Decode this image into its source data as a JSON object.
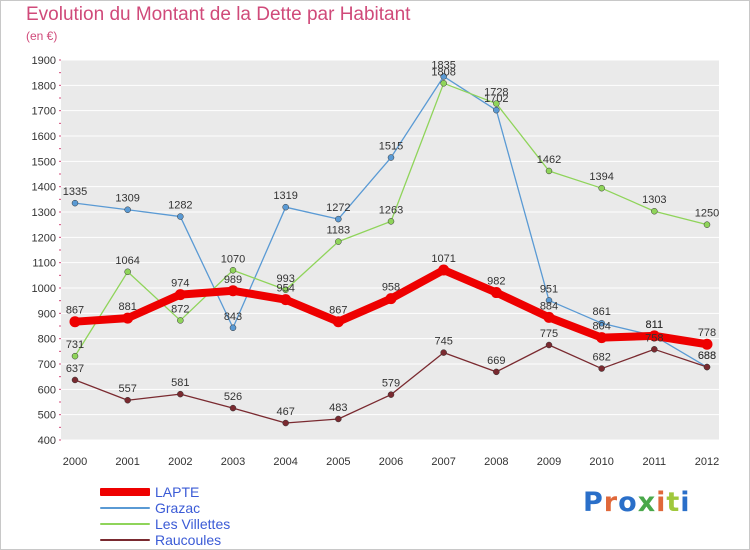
{
  "title": "Evolution du Montant de la Dette par Habitant",
  "unit": "(en €)",
  "brand": {
    "text": "Proxiti",
    "colors": [
      "#2a6fc9",
      "#e0683a",
      "#2a6fc9",
      "#4aa84a",
      "#e0683a",
      "#a0c83c",
      "#2a6fc9"
    ]
  },
  "chart_data": {
    "type": "line",
    "title": "Evolution du Montant de la Dette par Habitant",
    "subtitle": "(en €)",
    "xlabel": "",
    "ylabel": "",
    "x": [
      "2000",
      "2001",
      "2002",
      "2003",
      "2004",
      "2005",
      "2006",
      "2007",
      "2008",
      "2009",
      "2010",
      "2011",
      "2012"
    ],
    "ylim": [
      400,
      1900
    ],
    "yticks": [
      400,
      500,
      600,
      700,
      800,
      900,
      1000,
      1100,
      1200,
      1300,
      1400,
      1500,
      1600,
      1700,
      1800,
      1900
    ],
    "grid": "horizontal",
    "legend_position": "bottom-left",
    "series": [
      {
        "name": "Grazac",
        "color": "#5a9ad4",
        "width": 1.3,
        "values": [
          1335,
          1309,
          1282,
          843,
          1319,
          1272,
          1515,
          1835,
          1702,
          951,
          861,
          811,
          688
        ],
        "labels": [
          "1335",
          "1309",
          "1282",
          "843",
          "1319",
          "1272",
          "1515",
          "1835",
          "1702",
          "951",
          "861",
          "811",
          "688"
        ]
      },
      {
        "name": "Les Villettes",
        "color": "#8fd45a",
        "width": 1.3,
        "values": [
          731,
          1064,
          872,
          1070,
          993,
          1183,
          1263,
          1808,
          1728,
          1462,
          1394,
          1303,
          1250
        ],
        "labels": [
          "731",
          "1064",
          "872",
          "1070",
          "993",
          "1183",
          "1263",
          "1808",
          "1728",
          "1462",
          "1394",
          "1303",
          "1250"
        ]
      },
      {
        "name": "Raucoules",
        "color": "#7a2a30",
        "width": 1.3,
        "values": [
          637,
          557,
          581,
          526,
          467,
          483,
          579,
          745,
          669,
          775,
          682,
          758,
          688
        ],
        "labels": [
          "637",
          "557",
          "581",
          "526",
          "467",
          "483",
          "579",
          "745",
          "669",
          "775",
          "682",
          "758",
          "688"
        ]
      },
      {
        "name": "LAPTE",
        "color": "#ee0000",
        "width": 8,
        "values": [
          867,
          881,
          974,
          989,
          954,
          867,
          958,
          1071,
          982,
          884,
          804,
          811,
          778
        ],
        "labels": [
          "867",
          "881",
          "974",
          "989",
          "954",
          "867",
          "958",
          "1071",
          "982",
          "884",
          "804",
          "811",
          "778"
        ]
      }
    ],
    "legend": [
      {
        "name": "LAPTE",
        "color": "#ee0000",
        "thickness": 8
      },
      {
        "name": "Grazac",
        "color": "#5a9ad4",
        "thickness": 2
      },
      {
        "name": "Les Villettes",
        "color": "#8fd45a",
        "thickness": 2
      },
      {
        "name": "Raucoules",
        "color": "#7a2a30",
        "thickness": 2
      }
    ]
  }
}
